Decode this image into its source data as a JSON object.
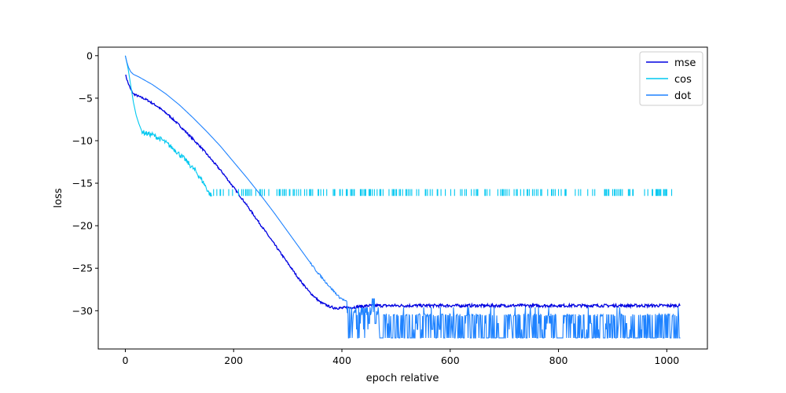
{
  "chart_data": {
    "type": "line",
    "title": "",
    "xlabel": "epoch relative",
    "ylabel": "loss",
    "xlim": [
      -50,
      1075
    ],
    "ylim": [
      -34.5,
      1.0
    ],
    "grid": false,
    "legend_position": "top-right",
    "x_ticks": [
      0,
      200,
      400,
      600,
      800,
      1000
    ],
    "y_ticks": [
      0,
      -5,
      -10,
      -15,
      -20,
      -25,
      -30
    ],
    "x_tick_labels": [
      "0",
      "200",
      "400",
      "600",
      "800",
      "1000"
    ],
    "y_tick_labels": [
      "0",
      "−5",
      "−10",
      "−15",
      "−20",
      "−25",
      "−30"
    ],
    "series": [
      {
        "name": "mse",
        "color": "#0000e0",
        "points": [
          [
            0,
            -2.2
          ],
          [
            5,
            -3.2
          ],
          [
            10,
            -4.0
          ],
          [
            15,
            -4.5
          ],
          [
            25,
            -4.8
          ],
          [
            40,
            -5.2
          ],
          [
            60,
            -6.0
          ],
          [
            80,
            -7.0
          ],
          [
            100,
            -8.2
          ],
          [
            120,
            -9.5
          ],
          [
            140,
            -10.8
          ],
          [
            160,
            -12.3
          ],
          [
            180,
            -13.8
          ],
          [
            200,
            -15.5
          ],
          [
            220,
            -17.2
          ],
          [
            240,
            -19.0
          ],
          [
            260,
            -20.8
          ],
          [
            280,
            -22.6
          ],
          [
            300,
            -24.4
          ],
          [
            320,
            -26.2
          ],
          [
            340,
            -27.8
          ],
          [
            360,
            -29.0
          ],
          [
            380,
            -29.6
          ],
          [
            400,
            -29.7
          ],
          [
            420,
            -29.6
          ],
          [
            450,
            -29.4
          ],
          [
            500,
            -29.4
          ],
          [
            600,
            -29.4
          ],
          [
            700,
            -29.4
          ],
          [
            800,
            -29.4
          ],
          [
            900,
            -29.4
          ],
          [
            1000,
            -29.4
          ],
          [
            1025,
            -29.4
          ]
        ]
      },
      {
        "name": "cos",
        "color": "#00c8f0",
        "points": [
          [
            0,
            0.0
          ],
          [
            5,
            -1.5
          ],
          [
            10,
            -3.5
          ],
          [
            15,
            -5.5
          ],
          [
            20,
            -7.0
          ],
          [
            25,
            -8.0
          ],
          [
            30,
            -8.8
          ],
          [
            35,
            -9.1
          ],
          [
            50,
            -9.3
          ],
          [
            70,
            -10.0
          ],
          [
            90,
            -11.0
          ],
          [
            110,
            -12.2
          ],
          [
            130,
            -13.6
          ],
          [
            145,
            -15.0
          ],
          [
            155,
            -16.2
          ],
          [
            160,
            -16.5
          ]
        ],
        "plateau": -16.5,
        "plateau_range": [
          160,
          1010
        ],
        "tick_height": 0.8
      },
      {
        "name": "dot",
        "color": "#1e82ff",
        "points": [
          [
            0,
            0.0
          ],
          [
            3,
            -0.8
          ],
          [
            6,
            -1.4
          ],
          [
            10,
            -1.9
          ],
          [
            15,
            -2.2
          ],
          [
            25,
            -2.5
          ],
          [
            50,
            -3.4
          ],
          [
            75,
            -4.5
          ],
          [
            100,
            -5.8
          ],
          [
            125,
            -7.3
          ],
          [
            150,
            -8.9
          ],
          [
            175,
            -10.6
          ],
          [
            200,
            -12.5
          ],
          [
            225,
            -14.4
          ],
          [
            250,
            -16.4
          ],
          [
            275,
            -18.5
          ],
          [
            300,
            -20.7
          ],
          [
            325,
            -22.9
          ],
          [
            350,
            -25.1
          ],
          [
            375,
            -27.0
          ],
          [
            395,
            -28.4
          ],
          [
            410,
            -29.0
          ],
          [
            420,
            -29.3
          ],
          [
            430,
            -29.4
          ],
          [
            440,
            -29.6
          ],
          [
            460,
            -29.6
          ]
        ],
        "noise_range": [
          410,
          1025
        ],
        "noise_values": [
          -29.6,
          -30.5,
          -31.5,
          -32.2,
          -33.2
        ]
      }
    ]
  }
}
